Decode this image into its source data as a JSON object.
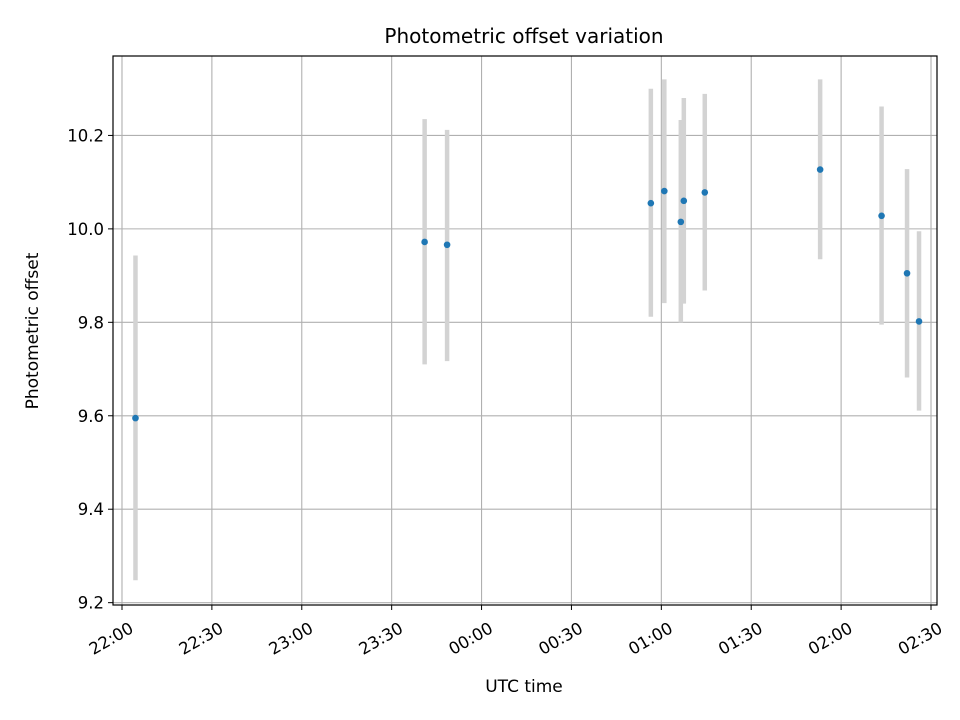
{
  "chart_data": {
    "type": "scatter",
    "title": "Photometric offset variation",
    "xlabel": "UTC time",
    "ylabel": "Photometric offset",
    "x_tick_labels": [
      "22:00",
      "22:30",
      "23:00",
      "23:30",
      "00:00",
      "00:30",
      "01:00",
      "01:30",
      "02:00",
      "02:30"
    ],
    "y_tick_labels": [
      "9.2",
      "9.4",
      "9.6",
      "9.8",
      "10.0",
      "10.2"
    ],
    "y_ticks": [
      9.2,
      9.4,
      9.6,
      9.8,
      10.0,
      10.2
    ],
    "xlim": [
      "21:57:00",
      "02:32:00"
    ],
    "ylim": [
      9.195,
      10.37
    ],
    "grid": true,
    "marker_color": "#1f77b4",
    "errorbar_color": "#d3d3d3",
    "series": [
      {
        "points": [
          {
            "time": "22:04:30",
            "y": 9.595,
            "err_low": 9.248,
            "err_high": 9.943
          },
          {
            "time": "23:41:00",
            "y": 9.972,
            "err_low": 9.71,
            "err_high": 10.235
          },
          {
            "time": "23:48:30",
            "y": 9.966,
            "err_low": 9.717,
            "err_high": 10.212
          },
          {
            "time": "00:56:30",
            "y": 10.055,
            "err_low": 9.812,
            "err_high": 10.3
          },
          {
            "time": "01:01:00",
            "y": 10.081,
            "err_low": 9.841,
            "err_high": 10.32
          },
          {
            "time": "01:06:30",
            "y": 10.015,
            "err_low": 9.8,
            "err_high": 10.233
          },
          {
            "time": "01:07:30",
            "y": 10.06,
            "err_low": 9.84,
            "err_high": 10.28
          },
          {
            "time": "01:14:30",
            "y": 10.078,
            "err_low": 9.868,
            "err_high": 10.289
          },
          {
            "time": "01:53:00",
            "y": 10.127,
            "err_low": 9.935,
            "err_high": 10.32
          },
          {
            "time": "02:13:30",
            "y": 10.028,
            "err_low": 9.795,
            "err_high": 10.262
          },
          {
            "time": "02:22:00",
            "y": 9.905,
            "err_low": 9.682,
            "err_high": 10.128
          },
          {
            "time": "02:26:00",
            "y": 9.802,
            "err_low": 9.611,
            "err_high": 9.995
          }
        ]
      }
    ]
  }
}
